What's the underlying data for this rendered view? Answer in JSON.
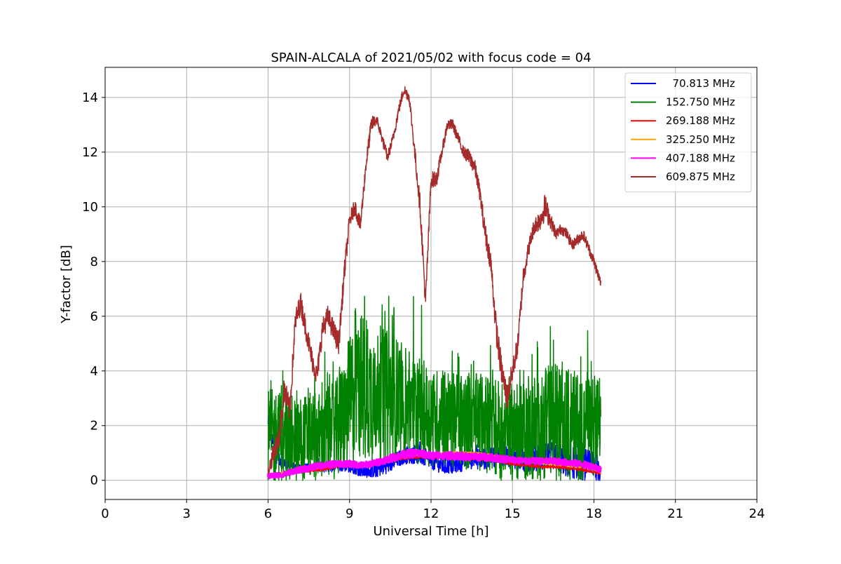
{
  "chart_data": {
    "type": "line",
    "title": "SPAIN-ALCALA of 2021/05/02 with focus code = 04",
    "xlabel": "Universal Time [h]",
    "ylabel": "Y-factor [dB]",
    "xlim": [
      0,
      24
    ],
    "ylim": [
      -0.7,
      15.1
    ],
    "xticks": [
      0,
      3,
      6,
      9,
      12,
      15,
      18,
      21,
      24
    ],
    "yticks": [
      0,
      2,
      4,
      6,
      8,
      10,
      12,
      14
    ],
    "grid": true,
    "legend_position": "top-right",
    "series": [
      {
        "name": "  70.813 MHz",
        "color": "#0000ff",
        "x": [
          6.0,
          6.3,
          6.6,
          7.0,
          7.5,
          8.0,
          8.5,
          9.0,
          9.5,
          10.0,
          10.5,
          11.0,
          11.5,
          12.0,
          12.5,
          13.0,
          13.5,
          14.0,
          14.5,
          15.0,
          15.5,
          16.0,
          16.5,
          17.0,
          17.5,
          18.0,
          18.25
        ],
        "y": [
          1.9,
          1.0,
          0.6,
          0.5,
          0.5,
          0.5,
          0.5,
          0.5,
          0.3,
          0.4,
          0.6,
          0.9,
          1.0,
          0.7,
          0.5,
          0.6,
          0.8,
          0.8,
          0.9,
          0.8,
          0.7,
          0.8,
          0.9,
          0.7,
          0.6,
          0.5,
          0.4
        ],
        "amp": [
          0.5,
          0.4,
          0.2,
          0.1,
          0.1,
          0.2,
          0.2,
          0.2,
          0.2,
          0.3,
          0.3,
          0.3,
          0.4,
          0.3,
          0.3,
          0.3,
          0.4,
          0.4,
          0.4,
          0.4,
          0.4,
          0.5,
          0.5,
          0.6,
          0.6,
          0.6,
          0.5
        ]
      },
      {
        "name": "152.750 MHz",
        "color": "#008000",
        "x": [
          6.0,
          6.3,
          6.6,
          7.0,
          7.5,
          8.0,
          8.5,
          9.0,
          9.3,
          9.6,
          10.0,
          10.5,
          11.0,
          11.5,
          12.0,
          12.5,
          13.0,
          13.5,
          14.0,
          14.5,
          15.0,
          15.5,
          16.0,
          16.5,
          17.0,
          17.5,
          18.0,
          18.25
        ],
        "y": [
          1.0,
          1.0,
          1.0,
          1.0,
          1.1,
          1.2,
          1.3,
          2.0,
          2.6,
          2.4,
          2.5,
          2.3,
          2.2,
          2.0,
          1.8,
          1.7,
          1.7,
          1.6,
          1.5,
          1.3,
          1.2,
          1.2,
          1.3,
          1.5,
          1.4,
          1.4,
          1.3,
          1.5
        ],
        "amp": [
          1.8,
          1.8,
          1.7,
          1.6,
          1.6,
          1.7,
          1.8,
          2.5,
          3.0,
          2.6,
          2.5,
          2.4,
          2.2,
          2.0,
          1.8,
          1.8,
          1.8,
          1.8,
          1.8,
          1.9,
          1.8,
          1.8,
          2.0,
          2.2,
          2.1,
          2.0,
          1.9,
          1.9
        ]
      },
      {
        "name": "269.188 MHz",
        "color": "#ff0000",
        "x": [
          6.0,
          6.5,
          7.0,
          7.5,
          8.0,
          8.5,
          9.0,
          9.5,
          10.0,
          10.5,
          11.0,
          11.5,
          12.0,
          12.5,
          13.0,
          13.5,
          14.0,
          14.5,
          15.0,
          15.5,
          16.0,
          16.5,
          17.0,
          17.5,
          18.0,
          18.25
        ],
        "y": [
          0.1,
          0.2,
          0.3,
          0.35,
          0.4,
          0.5,
          0.55,
          0.55,
          0.6,
          0.7,
          0.8,
          0.85,
          0.85,
          0.85,
          0.85,
          0.8,
          0.75,
          0.7,
          0.6,
          0.55,
          0.5,
          0.5,
          0.45,
          0.4,
          0.3,
          0.25
        ],
        "amp": [
          0.05,
          0.05,
          0.05,
          0.05,
          0.05,
          0.05,
          0.05,
          0.05,
          0.05,
          0.05,
          0.05,
          0.05,
          0.05,
          0.05,
          0.05,
          0.05,
          0.05,
          0.05,
          0.05,
          0.05,
          0.05,
          0.05,
          0.05,
          0.05,
          0.05,
          0.05
        ]
      },
      {
        "name": "325.250 MHz",
        "color": "#ffa500",
        "x": [
          6.0,
          6.5,
          7.0,
          7.5,
          8.0,
          8.5,
          9.0,
          9.5,
          10.0,
          10.5,
          11.0,
          11.5,
          12.0,
          12.5,
          13.0,
          13.5,
          14.0,
          14.5,
          15.0,
          15.5,
          16.0,
          16.5,
          17.0,
          17.5,
          18.0,
          18.25
        ],
        "y": [
          0.15,
          0.25,
          0.35,
          0.4,
          0.5,
          0.55,
          0.6,
          0.6,
          0.65,
          0.75,
          0.9,
          0.95,
          0.95,
          1.0,
          1.0,
          1.0,
          0.95,
          0.85,
          0.75,
          0.7,
          0.65,
          0.6,
          0.55,
          0.5,
          0.4,
          0.3
        ],
        "amp": [
          0.05,
          0.05,
          0.05,
          0.05,
          0.05,
          0.05,
          0.05,
          0.05,
          0.05,
          0.05,
          0.05,
          0.05,
          0.05,
          0.05,
          0.05,
          0.05,
          0.05,
          0.05,
          0.05,
          0.05,
          0.05,
          0.05,
          0.05,
          0.05,
          0.05,
          0.05
        ]
      },
      {
        "name": "407.188 MHz",
        "color": "#ff00ff",
        "x": [
          6.0,
          6.5,
          7.0,
          7.5,
          8.0,
          8.5,
          9.0,
          9.5,
          10.0,
          10.5,
          11.0,
          11.5,
          12.0,
          12.5,
          13.0,
          13.5,
          14.0,
          14.5,
          15.0,
          15.5,
          16.0,
          16.5,
          17.0,
          17.5,
          18.0,
          18.25
        ],
        "y": [
          0.15,
          0.2,
          0.35,
          0.45,
          0.55,
          0.6,
          0.6,
          0.55,
          0.65,
          0.8,
          0.95,
          1.0,
          0.9,
          0.9,
          0.9,
          0.85,
          0.85,
          0.8,
          0.75,
          0.7,
          0.7,
          0.7,
          0.65,
          0.6,
          0.5,
          0.4
        ],
        "amp": [
          0.1,
          0.1,
          0.1,
          0.12,
          0.12,
          0.12,
          0.12,
          0.12,
          0.12,
          0.14,
          0.15,
          0.15,
          0.14,
          0.14,
          0.14,
          0.14,
          0.14,
          0.14,
          0.12,
          0.12,
          0.12,
          0.12,
          0.12,
          0.12,
          0.12,
          0.12
        ]
      },
      {
        "name": "609.875 MHz",
        "color": "#a52a2a",
        "x": [
          6.0,
          6.2,
          6.4,
          6.6,
          6.8,
          7.0,
          7.2,
          7.4,
          7.6,
          7.8,
          8.0,
          8.2,
          8.4,
          8.6,
          8.8,
          9.0,
          9.2,
          9.4,
          9.6,
          9.8,
          10.0,
          10.2,
          10.4,
          10.6,
          10.8,
          11.0,
          11.2,
          11.4,
          11.6,
          11.8,
          12.0,
          12.2,
          12.4,
          12.6,
          12.8,
          13.0,
          13.2,
          13.4,
          13.6,
          13.8,
          14.0,
          14.2,
          14.4,
          14.6,
          14.8,
          15.0,
          15.2,
          15.4,
          15.6,
          15.8,
          16.0,
          16.2,
          16.4,
          16.6,
          16.8,
          17.0,
          17.2,
          17.4,
          17.6,
          17.8,
          18.0,
          18.25
        ],
        "y": [
          0.3,
          1.0,
          1.5,
          3.3,
          2.5,
          5.8,
          6.5,
          5.5,
          4.5,
          3.8,
          5.5,
          6.0,
          5.5,
          5.0,
          7.5,
          9.5,
          10.0,
          9.3,
          11.5,
          13.0,
          13.2,
          12.5,
          11.8,
          12.5,
          13.5,
          14.3,
          14.0,
          12.0,
          10.0,
          6.5,
          11.0,
          11.0,
          12.0,
          13.0,
          13.0,
          12.5,
          12.0,
          11.8,
          11.5,
          10.5,
          9.0,
          8.0,
          5.5,
          4.0,
          3.0,
          4.0,
          5.0,
          7.5,
          8.5,
          9.3,
          9.5,
          10.0,
          9.5,
          9.0,
          9.2,
          9.0,
          8.6,
          8.8,
          9.0,
          8.5,
          8.0,
          7.2
        ],
        "amp": [
          0.2,
          0.4,
          0.4,
          0.5,
          0.5,
          0.4,
          0.4,
          0.4,
          0.4,
          0.4,
          0.4,
          0.4,
          0.4,
          0.4,
          0.4,
          0.3,
          0.3,
          0.3,
          0.3,
          0.3,
          0.2,
          0.2,
          0.2,
          0.2,
          0.2,
          0.2,
          0.2,
          0.3,
          0.4,
          0.4,
          0.3,
          0.3,
          0.2,
          0.2,
          0.2,
          0.2,
          0.2,
          0.3,
          0.3,
          0.3,
          0.4,
          0.4,
          0.5,
          0.5,
          0.5,
          0.4,
          0.4,
          0.4,
          0.3,
          0.3,
          0.4,
          0.5,
          0.3,
          0.2,
          0.2,
          0.2,
          0.2,
          0.2,
          0.2,
          0.2,
          0.2,
          0.2
        ]
      }
    ]
  }
}
